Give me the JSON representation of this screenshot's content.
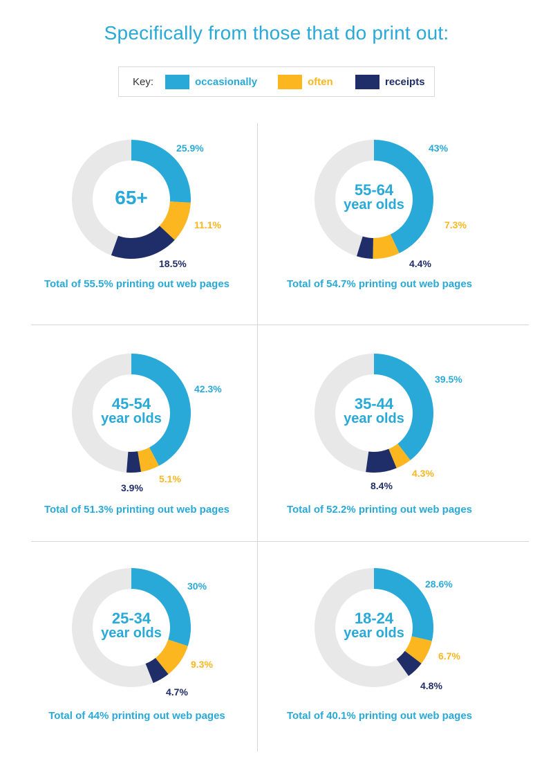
{
  "title": "Specifically from those that do print out:",
  "legend": {
    "key_label": "Key:",
    "items": [
      {
        "label": "occasionally",
        "color": "#29a9d8"
      },
      {
        "label": "often",
        "color": "#fbb620"
      },
      {
        "label": "receipts",
        "color": "#1f2d68"
      }
    ]
  },
  "colors": {
    "occasionally": "#29a9d8",
    "often": "#fbb620",
    "receipts": "#1f2d68",
    "remainder": "#e8e8e8"
  },
  "chart_data": [
    {
      "type": "pie",
      "center_label": "65+",
      "center_sublabel": "",
      "values": [
        25.9,
        11.1,
        18.5
      ],
      "labels": [
        "25.9%",
        "11.1%",
        "18.5%"
      ],
      "total": "Total of 55.5% printing out web pages"
    },
    {
      "type": "pie",
      "center_label": "55-64",
      "center_sublabel": "year olds",
      "values": [
        43,
        7.3,
        4.4
      ],
      "labels": [
        "43%",
        "7.3%",
        "4.4%"
      ],
      "total": "Total of 54.7% printing out web pages"
    },
    {
      "type": "pie",
      "center_label": "45-54",
      "center_sublabel": "year olds",
      "values": [
        42.3,
        5.1,
        3.9
      ],
      "labels": [
        "42.3%",
        "5.1%",
        "3.9%"
      ],
      "total": "Total of 51.3% printing out web pages"
    },
    {
      "type": "pie",
      "center_label": "35-44",
      "center_sublabel": "year olds",
      "values": [
        39.5,
        4.3,
        8.4
      ],
      "labels": [
        "39.5%",
        "4.3%",
        "8.4%"
      ],
      "total": "Total of 52.2% printing out web pages"
    },
    {
      "type": "pie",
      "center_label": "25-34",
      "center_sublabel": "year olds",
      "values": [
        30,
        9.3,
        4.7
      ],
      "labels": [
        "30%",
        "9.3%",
        "4.7%"
      ],
      "total": "Total of 44% printing out web pages"
    },
    {
      "type": "pie",
      "center_label": "18-24",
      "center_sublabel": "year olds",
      "values": [
        28.6,
        6.7,
        4.8
      ],
      "labels": [
        "28.6%",
        "6.7%",
        "4.8%"
      ],
      "total": "Total of 40.1% printing out web pages"
    }
  ]
}
